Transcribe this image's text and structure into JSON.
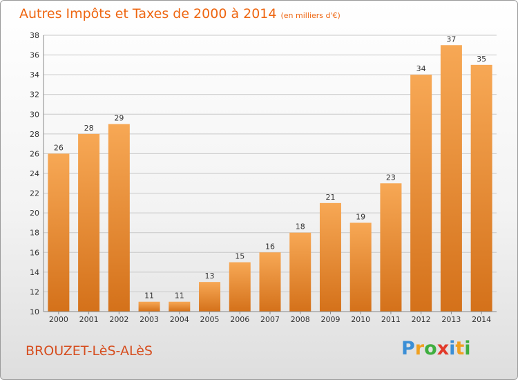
{
  "title": "Autres Impôts et Taxes de 2000 à 2014",
  "subtitle": "(en milliers d'€)",
  "place": "BROUZET-LèS-ALèS",
  "logo": {
    "text": "Proxiti",
    "letters": [
      {
        "char": "P",
        "color": "#3b8fd6"
      },
      {
        "char": "r",
        "color": "#f0a020"
      },
      {
        "char": "o",
        "color": "#3fae3f"
      },
      {
        "char": "x",
        "color": "#e23a2a"
      },
      {
        "char": "i",
        "color": "#3b8fd6"
      },
      {
        "char": "t",
        "color": "#f0a020"
      },
      {
        "char": "i",
        "color": "#3fae3f"
      }
    ]
  },
  "colors": {
    "bar_top": "#f7a855",
    "bar_bottom": "#d4711a",
    "grid": "#c8c8c8",
    "title": "#ee6611"
  },
  "chart_data": {
    "type": "bar",
    "categories": [
      "2000",
      "2001",
      "2002",
      "2003",
      "2004",
      "2005",
      "2006",
      "2007",
      "2008",
      "2009",
      "2010",
      "2011",
      "2012",
      "2013",
      "2014"
    ],
    "values": [
      26,
      28,
      29,
      11,
      11,
      13,
      15,
      16,
      18,
      21,
      19,
      23,
      34,
      37,
      35
    ],
    "ylim": [
      10,
      38
    ],
    "yticks": [
      10,
      12,
      14,
      16,
      18,
      20,
      22,
      24,
      26,
      28,
      30,
      32,
      34,
      36,
      38
    ],
    "grid": true
  }
}
